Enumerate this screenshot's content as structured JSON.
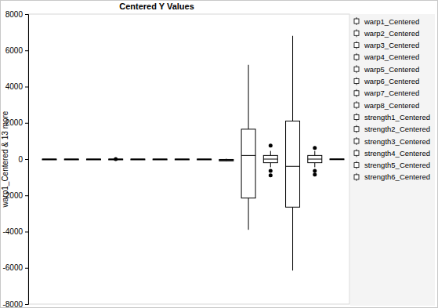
{
  "chart_data": {
    "type": "box",
    "title": "Centered Y Values",
    "y_label": "warp1_Centered & 13 more",
    "ylim": [
      -8000,
      8000
    ],
    "yticks": [
      -8000,
      -6000,
      -4000,
      -2000,
      0,
      2000,
      4000,
      6000,
      8000
    ],
    "tick_labels": "y",
    "legend": "right",
    "grid": false,
    "color": "#000000",
    "series": [
      {
        "name": "warp1_Centered",
        "whisker_low": -3,
        "q1": -1,
        "median": 0,
        "q3": 1,
        "whisker_high": 3,
        "outliers": []
      },
      {
        "name": "warp2_Centered",
        "whisker_low": -3,
        "q1": -1,
        "median": 0,
        "q3": 1,
        "whisker_high": 3,
        "outliers": []
      },
      {
        "name": "warp3_Centered",
        "whisker_low": -3,
        "q1": -1,
        "median": 0,
        "q3": 1,
        "whisker_high": 3,
        "outliers": []
      },
      {
        "name": "warp4_Centered",
        "whisker_low": -3,
        "q1": -1,
        "median": 0,
        "q3": 1,
        "whisker_high": 3,
        "outliers": [
          5
        ]
      },
      {
        "name": "warp5_Centered",
        "whisker_low": -3,
        "q1": -1,
        "median": 0,
        "q3": 1,
        "whisker_high": 3,
        "outliers": []
      },
      {
        "name": "warp6_Centered",
        "whisker_low": -3,
        "q1": -1,
        "median": 0,
        "q3": 1,
        "whisker_high": 3,
        "outliers": []
      },
      {
        "name": "warp7_Centered",
        "whisker_low": -3,
        "q1": -1,
        "median": 0,
        "q3": 1,
        "whisker_high": 3,
        "outliers": []
      },
      {
        "name": "warp8_Centered",
        "whisker_low": -3,
        "q1": -1,
        "median": 0,
        "q3": 1,
        "whisker_high": 3,
        "outliers": []
      },
      {
        "name": "strength1_Centered",
        "whisker_low": -130,
        "q1": -100,
        "median": -60,
        "q3": -20,
        "whisker_high": 20,
        "outliers": []
      },
      {
        "name": "strength2_Centered",
        "whisker_low": -3900,
        "q1": -2150,
        "median": 200,
        "q3": 1650,
        "whisker_high": 5200,
        "outliers": []
      },
      {
        "name": "strength3_Centered",
        "whisker_low": -450,
        "q1": -200,
        "median": 0,
        "q3": 200,
        "whisker_high": 450,
        "outliers": [
          750,
          -650,
          -900
        ]
      },
      {
        "name": "strength4_Centered",
        "whisker_low": -6150,
        "q1": -2650,
        "median": -400,
        "q3": 2100,
        "whisker_high": 6800,
        "outliers": []
      },
      {
        "name": "strength5_Centered",
        "whisker_low": -450,
        "q1": -200,
        "median": 0,
        "q3": 200,
        "whisker_high": 450,
        "outliers": [
          620,
          -650,
          -850
        ]
      },
      {
        "name": "strength6_Centered",
        "whisker_low": -20,
        "q1": -10,
        "median": 0,
        "q3": 10,
        "whisker_high": 20,
        "outliers": []
      }
    ]
  }
}
